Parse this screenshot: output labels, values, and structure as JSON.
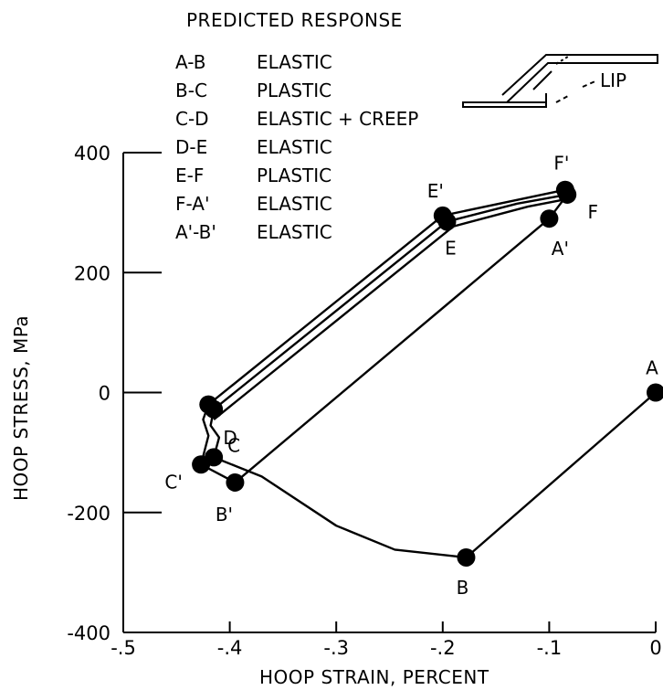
{
  "chart_data": {
    "type": "line",
    "title": "PREDICTED RESPONSE",
    "xlabel": "HOOP STRAIN, PERCENT",
    "ylabel": "HOOP STRESS, MPa",
    "xlim": [
      -0.5,
      0
    ],
    "ylim": [
      -400,
      400
    ],
    "xticks": [
      {
        "value": -0.5,
        "label": "-.5"
      },
      {
        "value": -0.4,
        "label": "-.4"
      },
      {
        "value": -0.3,
        "label": "-.3"
      },
      {
        "value": -0.2,
        "label": "-.2"
      },
      {
        "value": -0.1,
        "label": "-.1"
      },
      {
        "value": 0,
        "label": "0"
      }
    ],
    "yticks": [
      {
        "value": 400,
        "label": "400"
      },
      {
        "value": 200,
        "label": "200"
      },
      {
        "value": 0,
        "label": "0"
      },
      {
        "value": -200,
        "label": "-200"
      },
      {
        "value": -400,
        "label": "-400"
      }
    ],
    "legend": [
      {
        "segment": "A-B",
        "response": "ELASTIC"
      },
      {
        "segment": "B-C",
        "response": "PLASTIC"
      },
      {
        "segment": "C-D",
        "response": "ELASTIC + CREEP"
      },
      {
        "segment": "D-E",
        "response": "ELASTIC"
      },
      {
        "segment": "E-F",
        "response": "PLASTIC"
      },
      {
        "segment": "F-A'",
        "response": "ELASTIC"
      },
      {
        "segment": "A'-B'",
        "response": "ELASTIC"
      }
    ],
    "legend_placement": "top-left",
    "grid": false,
    "points": [
      {
        "label": "A",
        "x": 0.0,
        "y": 0
      },
      {
        "label": "B",
        "x": -0.178,
        "y": -275
      },
      {
        "label": "C",
        "x": -0.415,
        "y": -108
      },
      {
        "label": "D",
        "x": -0.415,
        "y": -28
      },
      {
        "label": "E",
        "x": -0.196,
        "y": 285
      },
      {
        "label": "F",
        "x": -0.083,
        "y": 330
      },
      {
        "label": "A'",
        "x": -0.1,
        "y": 290
      },
      {
        "label": "B'",
        "x": -0.395,
        "y": -150
      },
      {
        "label": "C'",
        "x": -0.427,
        "y": -120
      },
      {
        "label": "D'",
        "x": -0.42,
        "y": -20
      },
      {
        "label": "E'",
        "x": -0.2,
        "y": 295
      },
      {
        "label": "F'",
        "x": -0.085,
        "y": 338
      }
    ],
    "series": [
      {
        "x": [
          0.0,
          -0.178,
          -0.245,
          -0.3,
          -0.37,
          -0.415
        ],
        "y": [
          0,
          -275,
          -262,
          -222,
          -140,
          -108
        ]
      },
      {
        "x": [
          -0.415,
          -0.41,
          -0.418,
          -0.415
        ],
        "y": [
          -108,
          -75,
          -55,
          -28
        ]
      },
      {
        "x": [
          -0.415,
          -0.196,
          -0.13,
          -0.083,
          -0.1,
          -0.395,
          -0.427,
          -0.42,
          -0.425,
          -0.42,
          -0.2,
          -0.085
        ],
        "y": [
          -28,
          285,
          315,
          330,
          290,
          -150,
          -120,
          -72,
          -45,
          -20,
          295,
          338
        ]
      }
    ],
    "annotation": "LIP"
  }
}
